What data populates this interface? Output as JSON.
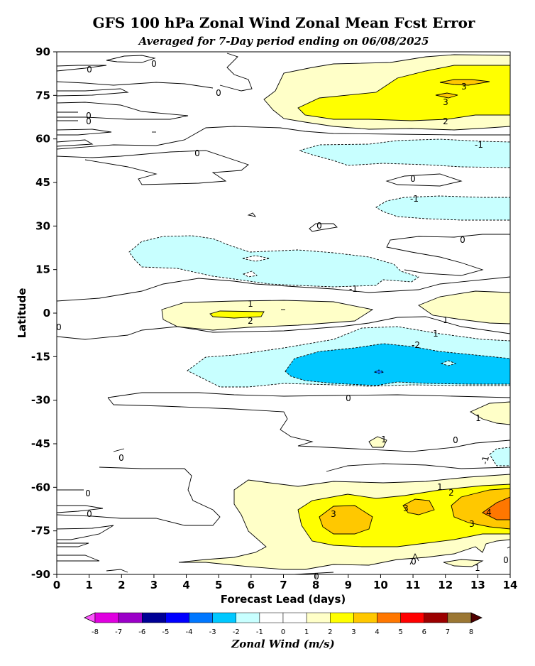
{
  "chart_data": {
    "type": "contour",
    "title": "GFS 100 hPa Zonal Wind Zonal Mean Fcst Error",
    "subtitle": "Averaged for 7-Day period ending on 06/08/2025",
    "xlabel": "Forecast Lead (days)",
    "ylabel": "Latitude",
    "xlim": [
      0,
      14
    ],
    "ylim": [
      -90,
      90
    ],
    "xticks": [
      "0",
      "1",
      "2",
      "3",
      "4",
      "5",
      "6",
      "7",
      "8",
      "9",
      "10",
      "11",
      "12",
      "13",
      "14"
    ],
    "yticks": [
      "90",
      "75",
      "60",
      "45",
      "30",
      "15",
      "0",
      "-15",
      "-30",
      "-45",
      "-60",
      "-75",
      "-90"
    ],
    "colorbar": {
      "label": "Zonal Wind (m/s)",
      "ticks": [
        "-8",
        "-7",
        "-6",
        "-5",
        "-4",
        "-3",
        "-2",
        "-1",
        "0",
        "1",
        "2",
        "3",
        "4",
        "5",
        "6",
        "7",
        "8"
      ],
      "colors": [
        "#ff55ff",
        "#e000e0",
        "#9b00c8",
        "#000095",
        "#0000ff",
        "#0077ff",
        "#00c8ff",
        "#c8ffff",
        "#ffffff",
        "#ffffff",
        "#ffffc8",
        "#ffff00",
        "#ffc800",
        "#ff7700",
        "#ff0000",
        "#9b0000",
        "#9b7733",
        "#500000"
      ]
    },
    "regions": [
      {
        "name": "north-polar-positive",
        "lat_range": [
          62,
          87
        ],
        "lead_range": [
          6.5,
          14
        ],
        "peak": 3
      },
      {
        "name": "north-midlat-negative-1",
        "lat_range": [
          49,
          56
        ],
        "lead_range": [
          7.5,
          14
        ],
        "peak": -1
      },
      {
        "name": "north-midlat-negative-2",
        "lat_range": [
          32,
          40
        ],
        "lead_range": [
          10,
          14
        ],
        "peak": -1
      },
      {
        "name": "north-subtropical-negative",
        "lat_range": [
          9,
          26
        ],
        "lead_range": [
          2.3,
          11.3
        ],
        "peak": -1
      },
      {
        "name": "equatorial-positive",
        "lat_range": [
          -6,
          3
        ],
        "lead_range": [
          3.3,
          9.8
        ],
        "peak": 2
      },
      {
        "name": "south-tropical-negative",
        "lat_range": [
          -27,
          -5
        ],
        "lead_range": [
          4,
          14
        ],
        "peak": -3
      },
      {
        "name": "south-polar-positive",
        "lat_range": [
          -89,
          -59
        ],
        "lead_range": [
          3.8,
          14
        ],
        "peak": 4
      }
    ],
    "contour_labels": [
      "0",
      "0",
      "0",
      "0",
      "0",
      "0",
      "0",
      "0",
      "0",
      "0",
      "0",
      "0",
      "0",
      "0",
      "0",
      "0",
      "0",
      "0",
      "1",
      "1",
      "1",
      "1",
      "1",
      "1",
      "1",
      "2",
      "2",
      "2",
      "3",
      "3",
      "3",
      "3",
      "3",
      "4",
      "-1",
      "-1",
      "-1",
      "-1",
      "-1",
      "-1",
      "-2"
    ]
  }
}
